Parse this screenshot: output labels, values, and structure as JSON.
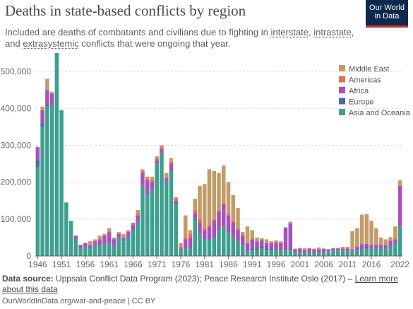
{
  "header": {
    "title": "Deaths in state-based conflicts by region",
    "subtitle_start": "Included are deaths of combatants and civilians due to fighting in ",
    "subtitle_link1": "interstate",
    "subtitle_sep1": ", ",
    "subtitle_link2": "intrastate",
    "subtitle_sep2": ", and ",
    "subtitle_link3": "extrasystemic",
    "subtitle_end": " conflicts that were ongoing that year."
  },
  "logo": {
    "line1": "Our World",
    "line2": "in Data"
  },
  "footer": {
    "source_label": "Data source:",
    "source_text": " Uppsala Conflict Data Program (2023); Peace Research Institute Oslo (2017) – ",
    "learn_more": "Learn more about this data",
    "url": "OurWorldInData.org/war-and-peace | CC BY"
  },
  "colors": {
    "middle_east": "#c29c68",
    "americas": "#e56e5a",
    "africa": "#a652ba",
    "europe": "#4c6a9c",
    "asia_oceania": "#3e9f8f",
    "grid": "#dcdcdc",
    "axis": "#666666"
  },
  "chart_data": {
    "type": "bar",
    "stacked": true,
    "title": "",
    "xlabel": "",
    "ylabel": "",
    "ylim": [
      0,
      550000
    ],
    "y_ticks": [
      0,
      100000,
      200000,
      300000,
      400000,
      500000
    ],
    "y_tick_labels": [
      "0",
      "100,000",
      "200,000",
      "300,000",
      "400,000",
      "500,000"
    ],
    "x_tick_labels": [
      "1946",
      "1951",
      "1956",
      "1961",
      "1966",
      "1971",
      "1976",
      "1981",
      "1986",
      "1991",
      "1996",
      "2001",
      "2006",
      "2011",
      "2016",
      "2022"
    ],
    "grid": true,
    "legend_position": "right",
    "categories": [
      "1946",
      "1947",
      "1948",
      "1949",
      "1950",
      "1951",
      "1952",
      "1953",
      "1954",
      "1955",
      "1956",
      "1957",
      "1958",
      "1959",
      "1960",
      "1961",
      "1962",
      "1963",
      "1964",
      "1965",
      "1966",
      "1967",
      "1968",
      "1969",
      "1970",
      "1971",
      "1972",
      "1973",
      "1974",
      "1975",
      "1976",
      "1977",
      "1978",
      "1979",
      "1980",
      "1981",
      "1982",
      "1983",
      "1984",
      "1985",
      "1986",
      "1987",
      "1988",
      "1989",
      "1990",
      "1991",
      "1992",
      "1993",
      "1994",
      "1995",
      "1996",
      "1997",
      "1998",
      "1999",
      "2000",
      "2001",
      "2002",
      "2003",
      "2004",
      "2005",
      "2006",
      "2007",
      "2008",
      "2009",
      "2010",
      "2011",
      "2012",
      "2013",
      "2014",
      "2015",
      "2016",
      "2017",
      "2018",
      "2019",
      "2020",
      "2021",
      "2022"
    ],
    "series": [
      {
        "name": "Asia and Oceania",
        "values": [
          240000,
          350000,
          405000,
          410000,
          550000,
          395000,
          145000,
          95000,
          45000,
          20000,
          25000,
          20000,
          30000,
          30000,
          30000,
          35000,
          25000,
          50000,
          40000,
          50000,
          70000,
          90000,
          190000,
          165000,
          180000,
          250000,
          280000,
          200000,
          230000,
          140000,
          15000,
          20000,
          20000,
          100000,
          60000,
          45000,
          45000,
          50000,
          70000,
          80000,
          65000,
          50000,
          40000,
          30000,
          10000,
          15000,
          15000,
          20000,
          15000,
          15000,
          15000,
          15000,
          15000,
          15000,
          10000,
          10000,
          8000,
          10000,
          8000,
          8000,
          10000,
          12000,
          15000,
          15000,
          15000,
          15000,
          12000,
          15000,
          15000,
          20000,
          20000,
          20000,
          20000,
          20000,
          25000,
          35000,
          80000
        ]
      },
      {
        "name": "Europe",
        "values": [
          20000,
          10000,
          5000,
          0,
          0,
          0,
          0,
          0,
          0,
          0,
          0,
          0,
          0,
          0,
          0,
          0,
          0,
          0,
          0,
          0,
          0,
          0,
          0,
          0,
          0,
          0,
          0,
          0,
          0,
          0,
          0,
          0,
          0,
          0,
          0,
          0,
          0,
          0,
          0,
          0,
          0,
          0,
          0,
          0,
          0,
          5000,
          5000,
          8000,
          5000,
          5000,
          2000,
          0,
          1000,
          3000,
          0,
          0,
          0,
          0,
          0,
          0,
          0,
          0,
          0,
          0,
          0,
          0,
          0,
          0,
          2000,
          3000,
          0,
          0,
          0,
          0,
          1000,
          0,
          0
        ]
      },
      {
        "name": "Africa",
        "values": [
          35000,
          35000,
          40000,
          30000,
          0,
          0,
          0,
          0,
          10000,
          10000,
          10000,
          10000,
          10000,
          15000,
          25000,
          30000,
          20000,
          10000,
          10000,
          15000,
          15000,
          20000,
          35000,
          40000,
          20000,
          10000,
          10000,
          10000,
          20000,
          10000,
          5000,
          25000,
          30000,
          15000,
          30000,
          25000,
          35000,
          45000,
          50000,
          60000,
          45000,
          40000,
          30000,
          25000,
          25000,
          25000,
          20000,
          15000,
          15000,
          15000,
          20000,
          20000,
          60000,
          70000,
          8000,
          10000,
          8000,
          10000,
          10000,
          10000,
          10000,
          5000,
          5000,
          5000,
          5000,
          5000,
          5000,
          10000,
          15000,
          10000,
          10000,
          10000,
          10000,
          10000,
          15000,
          10000,
          110000
        ]
      },
      {
        "name": "Americas",
        "values": [
          0,
          0,
          0,
          0,
          0,
          0,
          0,
          0,
          0,
          0,
          0,
          0,
          0,
          0,
          0,
          0,
          0,
          0,
          0,
          0,
          5000,
          5000,
          5000,
          5000,
          5000,
          5000,
          5000,
          5000,
          5000,
          5000,
          5000,
          5000,
          10000,
          10000,
          10000,
          5000,
          5000,
          5000,
          5000,
          5000,
          5000,
          5000,
          5000,
          5000,
          0,
          0,
          0,
          0,
          0,
          0,
          0,
          0,
          0,
          0,
          0,
          0,
          0,
          0,
          0,
          0,
          0,
          0,
          0,
          0,
          0,
          0,
          0,
          0,
          0,
          0,
          0,
          0,
          0,
          0,
          0,
          0,
          0
        ]
      },
      {
        "name": "Middle East",
        "values": [
          0,
          10000,
          30000,
          5000,
          0,
          0,
          0,
          0,
          0,
          0,
          0,
          10000,
          5000,
          10000,
          5000,
          10000,
          5000,
          5000,
          10000,
          5000,
          0,
          10000,
          5000,
          5000,
          10000,
          5000,
          5000,
          10000,
          10000,
          5000,
          10000,
          60000,
          10000,
          30000,
          90000,
          120000,
          150000,
          130000,
          100000,
          100000,
          85000,
          70000,
          55000,
          5000,
          45000,
          25000,
          10000,
          5000,
          10000,
          5000,
          5000,
          5000,
          2000,
          5000,
          2000,
          2000,
          5000,
          2000,
          2000,
          5000,
          0,
          2000,
          2000,
          2000,
          5000,
          5000,
          50000,
          50000,
          80000,
          80000,
          65000,
          45000,
          20000,
          15000,
          10000,
          35000,
          15000
        ]
      }
    ],
    "legend": [
      "Middle East",
      "Americas",
      "Africa",
      "Europe",
      "Asia and Oceania"
    ]
  }
}
